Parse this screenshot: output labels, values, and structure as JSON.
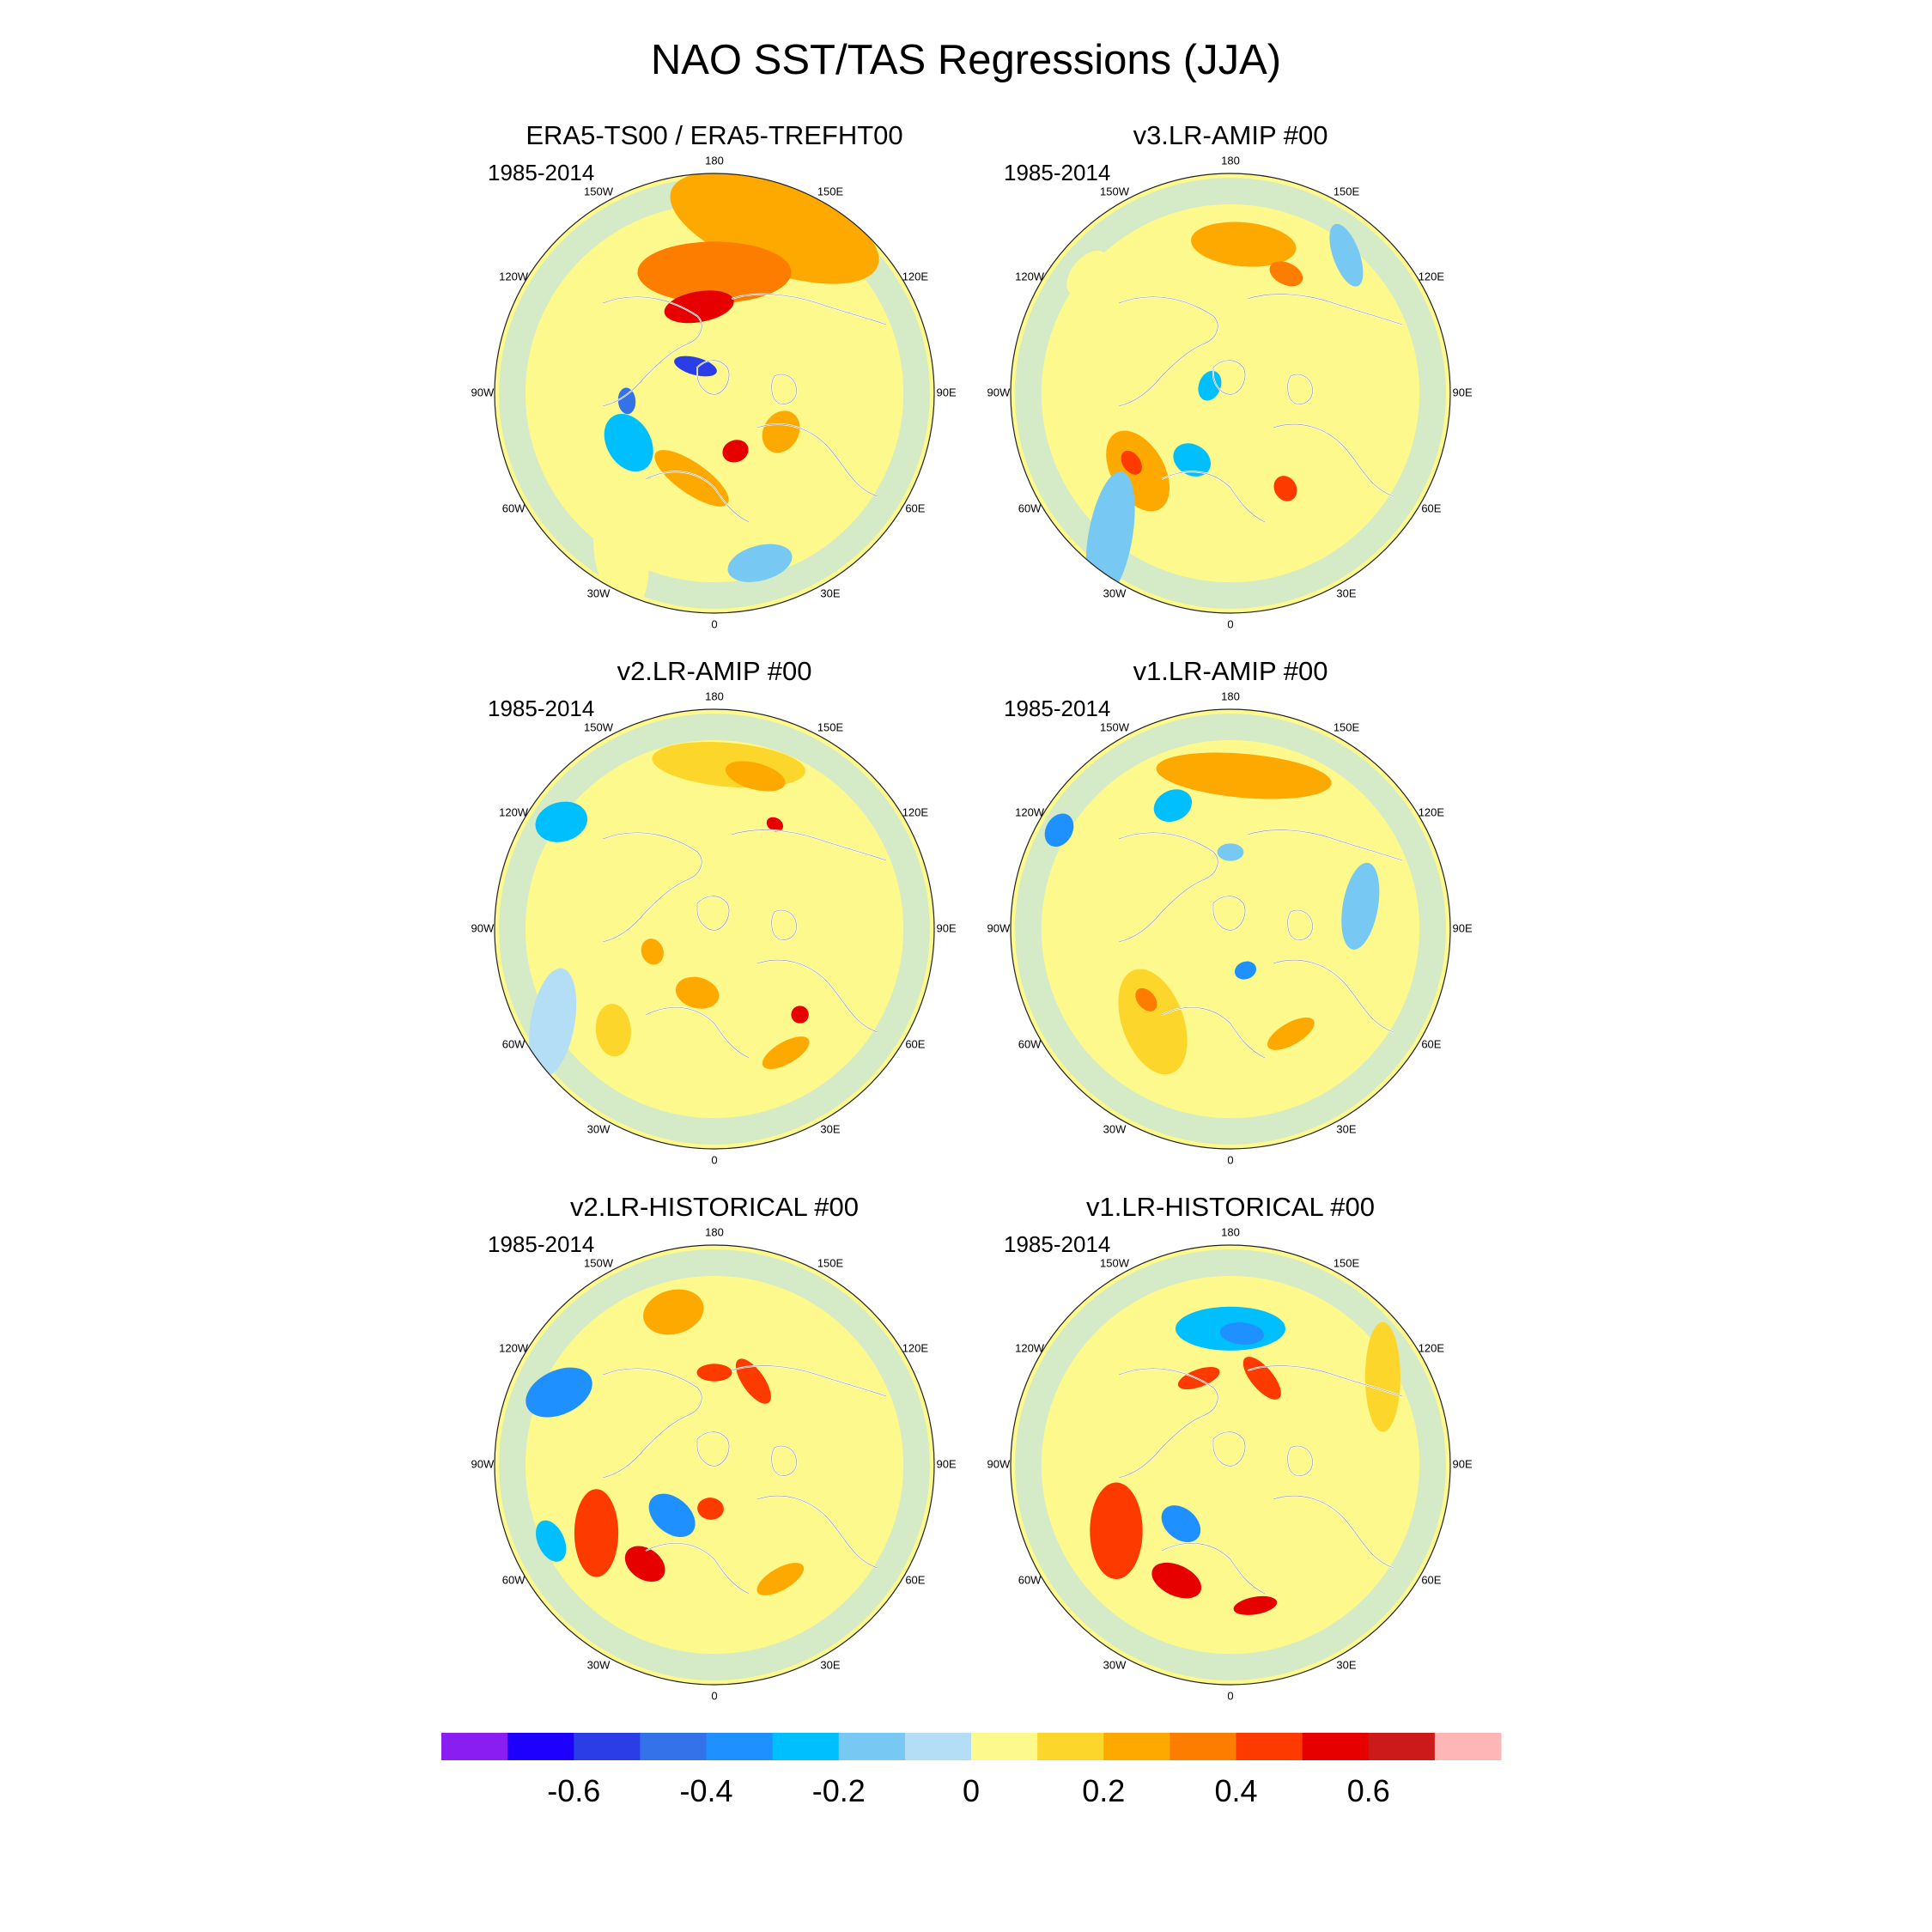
{
  "title": "NAO SST/TAS Regressions (JJA)",
  "colors": {
    "coast": "#ffffff",
    "land_outline": "#555555",
    "bins": [
      "#8a1ef2",
      "#1e00ff",
      "#2a3de6",
      "#3372e8",
      "#1e90ff",
      "#00bfff",
      "#77c8f2",
      "#b4def5",
      "#fdf98c",
      "#fdd62c",
      "#fda900",
      "#fd7d00",
      "#fd3a00",
      "#e60000",
      "#cc1a1a",
      "#ffb6b6"
    ]
  },
  "colorbar": {
    "ticks": [
      {
        "label": "-0.6",
        "boundary": 2
      },
      {
        "label": "-0.4",
        "boundary": 4
      },
      {
        "label": "-0.2",
        "boundary": 6
      },
      {
        "label": "0",
        "boundary": 8
      },
      {
        "label": "0.2",
        "boundary": 10
      },
      {
        "label": "0.4",
        "boundary": 12
      },
      {
        "label": "0.6",
        "boundary": 14
      }
    ]
  },
  "lon_labels": [
    {
      "text": "180",
      "deg": 180
    },
    {
      "text": "150E",
      "deg": 150
    },
    {
      "text": "120E",
      "deg": 120
    },
    {
      "text": "90E",
      "deg": 90
    },
    {
      "text": "60E",
      "deg": 60
    },
    {
      "text": "30E",
      "deg": 30
    },
    {
      "text": "0",
      "deg": 0
    },
    {
      "text": "30W",
      "deg": -30
    },
    {
      "text": "60W",
      "deg": -60
    },
    {
      "text": "90W",
      "deg": -90
    },
    {
      "text": "120W",
      "deg": -120
    },
    {
      "text": "150W",
      "deg": -150
    }
  ],
  "panels": [
    {
      "id": "era5",
      "title": "ERA5-TS00 / ERA5-TREFHT00",
      "period": "1985-2014",
      "blobs": [
        {
          "a": 160,
          "r": 0.8,
          "rx": 0.5,
          "ry": 0.2,
          "rot": 0,
          "c": 10
        },
        {
          "a": 180,
          "r": 0.55,
          "rx": 0.35,
          "ry": 0.14,
          "rot": 0,
          "c": 11
        },
        {
          "a": 190,
          "r": 0.4,
          "rx": 0.16,
          "ry": 0.07,
          "rot": 0,
          "c": 13
        },
        {
          "a": 215,
          "r": 0.15,
          "rx": 0.1,
          "ry": 0.04,
          "rot": 50,
          "c": 2
        },
        {
          "a": 275,
          "r": 0.4,
          "rx": 0.06,
          "ry": 0.04,
          "rot": 0,
          "c": 3
        },
        {
          "a": 300,
          "r": 0.45,
          "rx": 0.14,
          "ry": 0.1,
          "rot": 0,
          "c": 5
        },
        {
          "a": 345,
          "r": 0.4,
          "rx": 0.2,
          "ry": 0.07,
          "rot": 20,
          "c": 10
        },
        {
          "a": 20,
          "r": 0.28,
          "rx": 0.06,
          "ry": 0.05,
          "rot": 0,
          "c": 13
        },
        {
          "a": 60,
          "r": 0.35,
          "rx": 0.1,
          "ry": 0.08,
          "rot": 0,
          "c": 10
        },
        {
          "a": 100,
          "r": 0.55,
          "rx": 0.22,
          "ry": 0.08,
          "rot": 30,
          "c": 8
        },
        {
          "a": 330,
          "r": 0.85,
          "rx": 0.25,
          "ry": 0.12,
          "rot": 50,
          "c": 8
        },
        {
          "a": 15,
          "r": 0.8,
          "rx": 0.15,
          "ry": 0.08,
          "rot": 0,
          "c": 6
        }
      ]
    },
    {
      "id": "v3amip",
      "title": "v3.LR-AMIP  #00",
      "period": "1985-2014",
      "blobs": [
        {
          "a": 175,
          "r": 0.68,
          "rx": 0.24,
          "ry": 0.1,
          "rot": 0,
          "c": 10
        },
        {
          "a": 155,
          "r": 0.6,
          "rx": 0.08,
          "ry": 0.05,
          "rot": 0,
          "c": 11
        },
        {
          "a": 310,
          "r": 0.55,
          "rx": 0.2,
          "ry": 0.12,
          "rot": 10,
          "c": 10
        },
        {
          "a": 305,
          "r": 0.55,
          "rx": 0.06,
          "ry": 0.04,
          "rot": 0,
          "c": 12
        },
        {
          "a": 330,
          "r": 0.35,
          "rx": 0.09,
          "ry": 0.07,
          "rot": 0,
          "c": 5
        },
        {
          "a": 250,
          "r": 0.1,
          "rx": 0.07,
          "ry": 0.05,
          "rot": 0,
          "c": 5
        },
        {
          "a": 30,
          "r": 0.5,
          "rx": 0.05,
          "ry": 0.06,
          "rot": 0,
          "c": 12
        },
        {
          "a": 320,
          "r": 0.85,
          "rx": 0.3,
          "ry": 0.1,
          "rot": 60,
          "c": 6
        },
        {
          "a": 140,
          "r": 0.82,
          "rx": 0.15,
          "ry": 0.06,
          "rot": 30,
          "c": 6
        },
        {
          "a": 230,
          "r": 0.85,
          "rx": 0.12,
          "ry": 0.07,
          "rot": 0,
          "c": 8
        }
      ]
    },
    {
      "id": "v2amip",
      "title": "v2.LR-AMIP  #00",
      "period": "1985-2014",
      "blobs": [
        {
          "a": 175,
          "r": 0.75,
          "rx": 0.35,
          "ry": 0.1,
          "rot": 0,
          "c": 9
        },
        {
          "a": 165,
          "r": 0.72,
          "rx": 0.14,
          "ry": 0.06,
          "rot": 0,
          "c": 10
        },
        {
          "a": 235,
          "r": 0.85,
          "rx": 0.12,
          "ry": 0.09,
          "rot": 40,
          "c": 5
        },
        {
          "a": 345,
          "r": 0.3,
          "rx": 0.1,
          "ry": 0.07,
          "rot": 0,
          "c": 10
        },
        {
          "a": 30,
          "r": 0.65,
          "rx": 0.12,
          "ry": 0.05,
          "rot": 0,
          "c": 10
        },
        {
          "a": 45,
          "r": 0.55,
          "rx": 0.04,
          "ry": 0.04,
          "rot": 0,
          "c": 13
        },
        {
          "a": 290,
          "r": 0.3,
          "rx": 0.06,
          "ry": 0.05,
          "rot": 0,
          "c": 10
        },
        {
          "a": 315,
          "r": 0.65,
          "rx": 0.12,
          "ry": 0.08,
          "rot": 40,
          "c": 9
        },
        {
          "a": 150,
          "r": 0.55,
          "rx": 0.04,
          "ry": 0.03,
          "rot": 0,
          "c": 13
        },
        {
          "a": 300,
          "r": 0.85,
          "rx": 0.25,
          "ry": 0.1,
          "rot": 40,
          "c": 7
        }
      ]
    },
    {
      "id": "v1amip",
      "title": "v1.LR-AMIP  #00",
      "period": "1985-2014",
      "blobs": [
        {
          "a": 175,
          "r": 0.7,
          "rx": 0.4,
          "ry": 0.1,
          "rot": 0,
          "c": 10
        },
        {
          "a": 205,
          "r": 0.62,
          "rx": 0.09,
          "ry": 0.07,
          "rot": 0,
          "c": 5
        },
        {
          "a": 180,
          "r": 0.35,
          "rx": 0.06,
          "ry": 0.04,
          "rot": 0,
          "c": 6
        },
        {
          "a": 240,
          "r": 0.9,
          "rx": 0.08,
          "ry": 0.06,
          "rot": 0,
          "c": 4
        },
        {
          "a": 320,
          "r": 0.55,
          "rx": 0.25,
          "ry": 0.14,
          "rot": 30,
          "c": 9
        },
        {
          "a": 310,
          "r": 0.5,
          "rx": 0.06,
          "ry": 0.04,
          "rot": 0,
          "c": 11
        },
        {
          "a": 20,
          "r": 0.2,
          "rx": 0.05,
          "ry": 0.04,
          "rot": 0,
          "c": 4
        },
        {
          "a": 30,
          "r": 0.55,
          "rx": 0.12,
          "ry": 0.05,
          "rot": 0,
          "c": 10
        },
        {
          "a": 100,
          "r": 0.6,
          "rx": 0.2,
          "ry": 0.08,
          "rot": 20,
          "c": 6
        }
      ]
    },
    {
      "id": "v2hist",
      "title": "v2.LR-HISTORICAL  #00",
      "period": "1985-2014",
      "blobs": [
        {
          "a": 195,
          "r": 0.72,
          "rx": 0.14,
          "ry": 0.1,
          "rot": 0,
          "c": 10
        },
        {
          "a": 245,
          "r": 0.78,
          "rx": 0.16,
          "ry": 0.1,
          "rot": 40,
          "c": 4
        },
        {
          "a": 155,
          "r": 0.42,
          "rx": 0.12,
          "ry": 0.05,
          "rot": 30,
          "c": 12
        },
        {
          "a": 180,
          "r": 0.42,
          "rx": 0.08,
          "ry": 0.04,
          "rot": 0,
          "c": 12
        },
        {
          "a": 300,
          "r": 0.62,
          "rx": 0.2,
          "ry": 0.1,
          "rot": 30,
          "c": 12
        },
        {
          "a": 325,
          "r": 0.55,
          "rx": 0.1,
          "ry": 0.07,
          "rot": 0,
          "c": 13
        },
        {
          "a": 320,
          "r": 0.3,
          "rx": 0.12,
          "ry": 0.08,
          "rot": 0,
          "c": 4
        },
        {
          "a": 355,
          "r": 0.2,
          "rx": 0.06,
          "ry": 0.05,
          "rot": 0,
          "c": 12
        },
        {
          "a": 30,
          "r": 0.6,
          "rx": 0.12,
          "ry": 0.05,
          "rot": 0,
          "c": 10
        },
        {
          "a": 295,
          "r": 0.82,
          "rx": 0.1,
          "ry": 0.06,
          "rot": 0,
          "c": 5
        }
      ]
    },
    {
      "id": "v1hist",
      "title": "v1.LR-HISTORICAL  #00",
      "period": "1985-2014",
      "blobs": [
        {
          "a": 180,
          "r": 0.62,
          "rx": 0.25,
          "ry": 0.1,
          "rot": 0,
          "c": 5
        },
        {
          "a": 175,
          "r": 0.6,
          "rx": 0.1,
          "ry": 0.05,
          "rot": 0,
          "c": 4
        },
        {
          "a": 160,
          "r": 0.42,
          "rx": 0.12,
          "ry": 0.05,
          "rot": 30,
          "c": 12
        },
        {
          "a": 200,
          "r": 0.42,
          "rx": 0.1,
          "ry": 0.04,
          "rot": 0,
          "c": 12
        },
        {
          "a": 300,
          "r": 0.6,
          "rx": 0.22,
          "ry": 0.12,
          "rot": 30,
          "c": 12
        },
        {
          "a": 335,
          "r": 0.58,
          "rx": 0.12,
          "ry": 0.07,
          "rot": 0,
          "c": 13
        },
        {
          "a": 320,
          "r": 0.35,
          "rx": 0.1,
          "ry": 0.07,
          "rot": 0,
          "c": 4
        },
        {
          "a": 10,
          "r": 0.65,
          "rx": 0.1,
          "ry": 0.04,
          "rot": 0,
          "c": 13
        },
        {
          "a": 120,
          "r": 0.8,
          "rx": 0.25,
          "ry": 0.08,
          "rot": 30,
          "c": 9
        }
      ]
    }
  ]
}
